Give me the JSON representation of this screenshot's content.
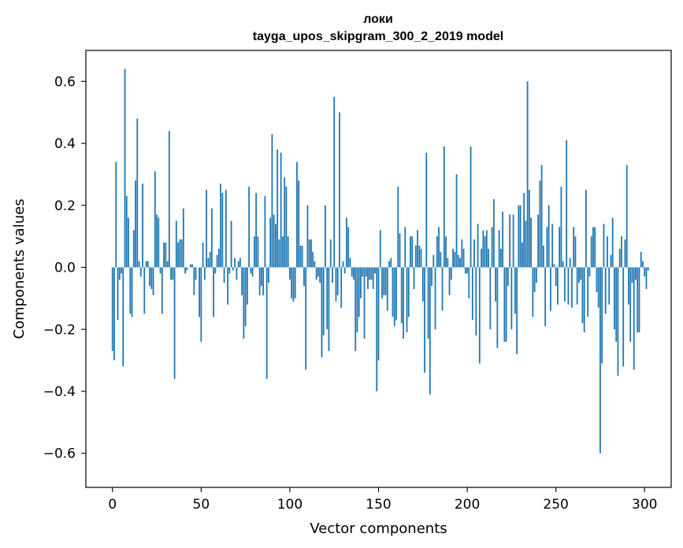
{
  "chart_data": {
    "type": "bar",
    "title": "локи",
    "subtitle": "tayga_upos_skipgram_300_2_2019 model",
    "xlabel": "Vector components",
    "ylabel": "Components values",
    "xlim": [
      -15,
      315
    ],
    "ylim": [
      -0.71,
      0.7
    ],
    "x_ticks": [
      0,
      50,
      100,
      150,
      200,
      250,
      300
    ],
    "x_tick_labels": [
      "0",
      "50",
      "100",
      "150",
      "200",
      "250",
      "300"
    ],
    "y_ticks": [
      -0.6,
      -0.4,
      -0.2,
      0.0,
      0.2,
      0.4,
      0.6
    ],
    "y_tick_labels": [
      "−0.6",
      "−0.4",
      "−0.2",
      "0.0",
      "0.2",
      "0.4",
      "0.6"
    ],
    "bar_color": "#1f77b4",
    "series": [
      {
        "name": "components",
        "values": [
          -0.27,
          -0.3,
          0.34,
          -0.17,
          -0.04,
          -0.02,
          -0.32,
          0.64,
          0.23,
          0.16,
          -0.15,
          -0.16,
          0.12,
          0.28,
          0.48,
          0.02,
          -0.03,
          0.27,
          -0.15,
          0.02,
          0.02,
          -0.06,
          -0.07,
          -0.09,
          0.31,
          0.17,
          0.16,
          -0.02,
          -0.15,
          0.08,
          0.08,
          0.02,
          0.44,
          -0.04,
          -0.04,
          -0.36,
          0.15,
          0.08,
          0.09,
          0.09,
          0.19,
          -0.02,
          -0.01,
          0.0,
          0.01,
          0.01,
          -0.09,
          -0.04,
          0.0,
          -0.16,
          -0.24,
          0.08,
          -0.04,
          0.25,
          0.03,
          0.05,
          0.19,
          -0.16,
          -0.02,
          0.04,
          0.06,
          0.27,
          0.24,
          -0.05,
          0.25,
          -0.12,
          -0.02,
          0.15,
          -0.01,
          0.03,
          -0.04,
          0.02,
          0.03,
          -0.09,
          -0.23,
          -0.19,
          -0.12,
          0.26,
          -0.02,
          -0.03,
          0.1,
          0.24,
          0.1,
          -0.09,
          -0.06,
          -0.09,
          0.23,
          -0.36,
          -0.05,
          0.16,
          0.43,
          0.17,
          0.14,
          0.38,
          0.09,
          0.37,
          0.1,
          0.29,
          0.26,
          0.1,
          -0.04,
          -0.1,
          -0.11,
          -0.1,
          0.34,
          0.28,
          0.07,
          0.07,
          -0.06,
          -0.33,
          0.2,
          0.09,
          0.09,
          0.05,
          0.02,
          -0.04,
          -0.03,
          -0.05,
          -0.29,
          -0.22,
          0.2,
          -0.2,
          -0.27,
          0.09,
          -0.05,
          0.55,
          -0.11,
          -0.09,
          0.5,
          -0.13,
          0.02,
          -0.02,
          0.16,
          0.13,
          0.03,
          -0.03,
          -0.04,
          -0.27,
          -0.21,
          -0.16,
          -0.1,
          -0.03,
          -0.23,
          -0.03,
          -0.07,
          -0.04,
          -0.04,
          -0.07,
          -0.02,
          -0.4,
          -0.3,
          0.12,
          -0.1,
          -0.09,
          -0.09,
          -0.14,
          0.02,
          0.03,
          -0.16,
          -0.19,
          -0.17,
          0.26,
          0.11,
          -0.18,
          -0.23,
          0.13,
          -0.21,
          -0.16,
          0.1,
          0.1,
          -0.07,
          0.07,
          0.12,
          0.07,
          0.06,
          -0.11,
          -0.34,
          0.37,
          -0.23,
          -0.41,
          -0.06,
          0.04,
          -0.2,
          0.1,
          0.13,
          0.05,
          -0.14,
          0.39,
          0.1,
          0.03,
          -0.09,
          -0.04,
          0.06,
          0.05,
          0.3,
          0.04,
          0.03,
          0.09,
          0.06,
          -0.02,
          -0.02,
          -0.1,
          0.39,
          -0.17,
          0.09,
          -0.22,
          0.14,
          -0.31,
          0.06,
          0.12,
          0.1,
          0.12,
          0.06,
          -0.2,
          0.13,
          0.22,
          -0.11,
          -0.26,
          0.12,
          0.06,
          0.18,
          -0.24,
          -0.24,
          -0.06,
          0.17,
          -0.2,
          0.17,
          -0.15,
          -0.28,
          0.2,
          0.2,
          0.08,
          0.24,
          0.15,
          0.6,
          0.25,
          0.16,
          -0.16,
          -0.08,
          -0.05,
          0.17,
          0.28,
          0.33,
          0.07,
          -0.19,
          0.13,
          0.2,
          -0.14,
          0.14,
          0.01,
          -0.06,
          -0.12,
          0.13,
          0.26,
          0.02,
          -0.11,
          0.41,
          -0.12,
          0.03,
          -0.13,
          0.13,
          0.1,
          -0.12,
          -0.05,
          -0.04,
          -0.18,
          -0.21,
          0.25,
          -0.16,
          -0.03,
          0.1,
          0.13,
          0.13,
          -0.08,
          -0.13,
          -0.6,
          -0.31,
          0.14,
          -0.15,
          0.1,
          -0.12,
          0.04,
          0.16,
          -0.2,
          -0.24,
          -0.35,
          0.06,
          0.1,
          -0.32,
          0.09,
          0.33,
          -0.12,
          -0.24,
          -0.05,
          -0.33,
          -0.04,
          -0.21,
          -0.21,
          0.05,
          0.02,
          -0.03,
          -0.07,
          -0.01
        ]
      }
    ]
  }
}
